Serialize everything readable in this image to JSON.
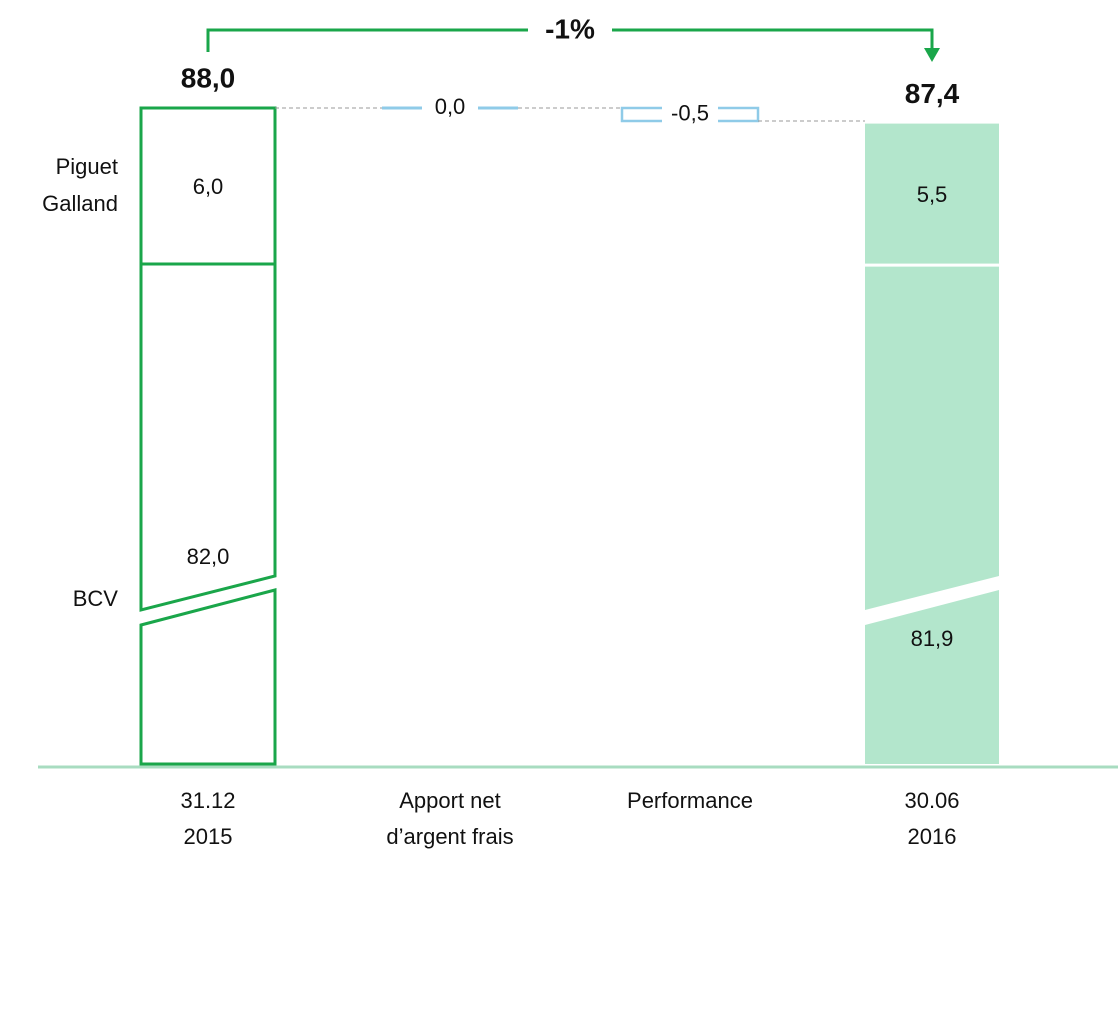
{
  "chart_data": {
    "type": "waterfall",
    "categories": [
      [
        "31.12",
        "2015"
      ],
      [
        "Apport net",
        "d’argent frais"
      ],
      [
        "Performance"
      ],
      [
        "30.06",
        "2016"
      ]
    ],
    "series": [
      {
        "name": [
          "Piguet",
          "Galland"
        ],
        "values": [
          6.0,
          null,
          null,
          5.5
        ],
        "value_labels": [
          "6,0",
          null,
          null,
          "5,5"
        ]
      },
      {
        "name": [
          "BCV"
        ],
        "values": [
          82.0,
          null,
          null,
          81.9
        ],
        "value_labels": [
          "82,0",
          null,
          null,
          "81,9"
        ]
      }
    ],
    "totals": [
      88.0,
      null,
      null,
      87.4
    ],
    "total_labels": [
      "88,0",
      null,
      null,
      "87,4"
    ],
    "changes": [
      null,
      0.0,
      -0.5,
      null
    ],
    "change_labels": [
      null,
      "0,0",
      "-0,5",
      null
    ],
    "annotation": "-1%",
    "outline_color": "#1aa64a",
    "fill_color": "#b3e6cc",
    "change_color": "#8fcbe8",
    "baseline_color": "#a8dcc0"
  }
}
